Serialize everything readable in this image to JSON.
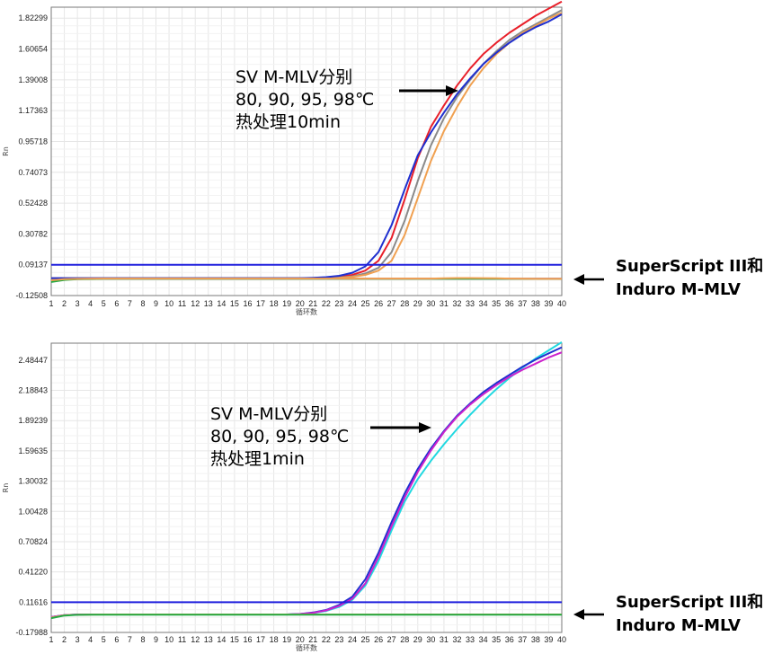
{
  "chart_data": [
    {
      "type": "line",
      "xlabel": "循环数",
      "ylabel": "Rn",
      "x": [
        1,
        2,
        3,
        4,
        5,
        6,
        7,
        8,
        9,
        10,
        11,
        12,
        13,
        14,
        15,
        16,
        17,
        18,
        19,
        20,
        21,
        22,
        23,
        24,
        25,
        26,
        27,
        28,
        29,
        30,
        31,
        32,
        33,
        34,
        35,
        36,
        37,
        38,
        39,
        40
      ],
      "xlim": [
        1,
        40
      ],
      "ylim": [
        -0.12508,
        1.9
      ],
      "yticks": [
        "-0.12508",
        "0.09137",
        "0.30782",
        "0.52428",
        "0.74073",
        "0.95718",
        "1.17363",
        "1.39008",
        "1.60654",
        "1.82299"
      ],
      "grid": true,
      "threshold": 0.09137,
      "threshold_color": "#2020dd",
      "annotation": [
        "SV M-MLV分别",
        "80, 90, 95, 98℃",
        "热处理10min"
      ],
      "side_label": [
        "SuperScript III和",
        "Induro M-MLV"
      ],
      "series": [
        {
          "color": "#e8202a",
          "values": [
            -0.003,
            -0.003,
            -0.003,
            -0.003,
            -0.003,
            -0.003,
            -0.003,
            -0.003,
            -0.003,
            -0.003,
            -0.003,
            -0.003,
            -0.003,
            -0.003,
            -0.003,
            -0.003,
            -0.003,
            -0.003,
            -0.003,
            -0.003,
            -0.002,
            0.001,
            0.007,
            0.02,
            0.05,
            0.12,
            0.28,
            0.55,
            0.84,
            1.06,
            1.21,
            1.35,
            1.47,
            1.57,
            1.65,
            1.72,
            1.78,
            1.84,
            1.89,
            1.94
          ]
        },
        {
          "color": "#8a8a8a",
          "values": [
            -0.003,
            -0.003,
            -0.003,
            -0.003,
            -0.003,
            -0.003,
            -0.003,
            -0.003,
            -0.003,
            -0.003,
            -0.003,
            -0.003,
            -0.003,
            -0.003,
            -0.003,
            -0.003,
            -0.003,
            -0.003,
            -0.003,
            -0.003,
            -0.003,
            -0.002,
            0.002,
            0.01,
            0.03,
            0.07,
            0.18,
            0.4,
            0.68,
            0.93,
            1.12,
            1.27,
            1.39,
            1.5,
            1.59,
            1.67,
            1.73,
            1.78,
            1.83,
            1.88
          ]
        },
        {
          "color": "#f0a050",
          "values": [
            -0.003,
            -0.003,
            -0.003,
            -0.003,
            -0.003,
            -0.003,
            -0.003,
            -0.003,
            -0.003,
            -0.003,
            -0.003,
            -0.003,
            -0.003,
            -0.003,
            -0.003,
            -0.003,
            -0.003,
            -0.003,
            -0.003,
            -0.003,
            -0.003,
            -0.003,
            0.0,
            0.006,
            0.02,
            0.05,
            0.12,
            0.3,
            0.56,
            0.82,
            1.03,
            1.2,
            1.35,
            1.47,
            1.57,
            1.65,
            1.72,
            1.77,
            1.82,
            1.86
          ]
        },
        {
          "color": "#1f2fcf",
          "values": [
            -0.003,
            -0.003,
            -0.003,
            -0.003,
            -0.003,
            -0.003,
            -0.003,
            -0.003,
            -0.003,
            -0.003,
            -0.003,
            -0.003,
            -0.003,
            -0.003,
            -0.003,
            -0.003,
            -0.003,
            -0.003,
            -0.003,
            -0.003,
            0.0,
            0.004,
            0.014,
            0.035,
            0.08,
            0.18,
            0.37,
            0.62,
            0.86,
            1.02,
            1.16,
            1.29,
            1.4,
            1.5,
            1.58,
            1.65,
            1.71,
            1.76,
            1.8,
            1.85
          ]
        },
        {
          "color": "#cc22cc",
          "values": [
            -0.02,
            -0.012,
            -0.009,
            -0.008,
            -0.007,
            -0.007,
            -0.007,
            -0.007,
            -0.007,
            -0.007,
            -0.007,
            -0.007,
            -0.007,
            -0.007,
            -0.007,
            -0.007,
            -0.007,
            -0.007,
            -0.007,
            -0.007,
            -0.007,
            -0.007,
            -0.007,
            -0.007,
            -0.007,
            -0.007,
            -0.007,
            -0.007,
            -0.007,
            -0.007,
            -0.007,
            -0.007,
            -0.007,
            -0.007,
            -0.007,
            -0.007,
            -0.007,
            -0.007,
            -0.007,
            -0.007
          ]
        },
        {
          "color": "#22aa44",
          "values": [
            -0.03,
            -0.015,
            -0.01,
            -0.009,
            -0.008,
            -0.008,
            -0.008,
            -0.008,
            -0.008,
            -0.008,
            -0.008,
            -0.008,
            -0.008,
            -0.008,
            -0.008,
            -0.008,
            -0.008,
            -0.008,
            -0.008,
            -0.008,
            -0.008,
            -0.008,
            -0.008,
            -0.008,
            -0.008,
            -0.008,
            -0.008,
            -0.008,
            -0.008,
            -0.008,
            -0.008,
            -0.008,
            -0.008,
            -0.008,
            -0.008,
            -0.008,
            -0.008,
            -0.008,
            -0.008,
            -0.008
          ]
        },
        {
          "color": "#f0a050",
          "values": [
            -0.018,
            -0.01,
            -0.008,
            -0.007,
            -0.006,
            -0.006,
            -0.006,
            -0.006,
            -0.006,
            -0.006,
            -0.006,
            -0.006,
            -0.006,
            -0.006,
            -0.006,
            -0.006,
            -0.006,
            -0.006,
            -0.006,
            -0.006,
            -0.006,
            -0.006,
            -0.006,
            -0.006,
            -0.006,
            -0.006,
            -0.006,
            -0.006,
            -0.006,
            -0.006,
            -0.004,
            -0.002,
            -0.002,
            -0.003,
            -0.004,
            -0.006,
            -0.007,
            -0.008,
            -0.008,
            -0.008
          ]
        }
      ]
    },
    {
      "type": "line",
      "xlabel": "循环数",
      "ylabel": "Rn",
      "x": [
        1,
        2,
        3,
        4,
        5,
        6,
        7,
        8,
        9,
        10,
        11,
        12,
        13,
        14,
        15,
        16,
        17,
        18,
        19,
        20,
        21,
        22,
        23,
        24,
        25,
        26,
        27,
        28,
        29,
        30,
        31,
        32,
        33,
        34,
        35,
        36,
        37,
        38,
        39,
        40
      ],
      "xlim": [
        1,
        40
      ],
      "ylim": [
        -0.17988,
        2.65
      ],
      "yticks": [
        "-0.17988",
        "0.11616",
        "0.41220",
        "0.70824",
        "1.00428",
        "1.30032",
        "1.59635",
        "1.89239",
        "2.18843",
        "2.48447"
      ],
      "grid": true,
      "threshold": 0.11616,
      "threshold_color": "#2020dd",
      "annotation": [
        "SV M-MLV分别",
        "80, 90, 95, 98℃",
        "热处理1min"
      ],
      "side_label": [
        "SuperScript III和",
        "Induro M-MLV"
      ],
      "series": [
        {
          "color": "#20d8e0",
          "values": [
            -0.03,
            -0.01,
            -0.005,
            -0.004,
            -0.004,
            -0.004,
            -0.004,
            -0.004,
            -0.004,
            -0.004,
            -0.004,
            -0.004,
            -0.004,
            -0.004,
            -0.004,
            -0.004,
            -0.004,
            -0.004,
            -0.004,
            0.0,
            0.01,
            0.03,
            0.07,
            0.14,
            0.28,
            0.52,
            0.82,
            1.1,
            1.32,
            1.5,
            1.66,
            1.81,
            1.95,
            2.08,
            2.2,
            2.31,
            2.41,
            2.5,
            2.58,
            2.66
          ]
        },
        {
          "color": "#1f2fcf",
          "values": [
            -0.03,
            -0.01,
            -0.005,
            -0.004,
            -0.004,
            -0.004,
            -0.004,
            -0.004,
            -0.004,
            -0.004,
            -0.004,
            -0.004,
            -0.004,
            -0.004,
            -0.004,
            -0.004,
            -0.004,
            -0.004,
            -0.004,
            0.0,
            0.015,
            0.04,
            0.09,
            0.17,
            0.34,
            0.6,
            0.9,
            1.18,
            1.42,
            1.62,
            1.79,
            1.94,
            2.06,
            2.17,
            2.26,
            2.34,
            2.42,
            2.49,
            2.55,
            2.61
          ]
        },
        {
          "color": "#cc22cc",
          "values": [
            -0.03,
            -0.01,
            -0.005,
            -0.004,
            -0.004,
            -0.004,
            -0.004,
            -0.004,
            -0.004,
            -0.004,
            -0.004,
            -0.004,
            -0.004,
            -0.004,
            -0.004,
            -0.004,
            -0.004,
            -0.004,
            -0.004,
            0.0,
            0.012,
            0.035,
            0.08,
            0.15,
            0.3,
            0.56,
            0.86,
            1.14,
            1.39,
            1.6,
            1.78,
            1.93,
            2.05,
            2.15,
            2.24,
            2.32,
            2.39,
            2.45,
            2.51,
            2.56
          ]
        },
        {
          "color": "#f0a050",
          "values": [
            -0.035,
            -0.012,
            -0.006,
            -0.005,
            -0.004,
            -0.004,
            -0.004,
            -0.004,
            -0.004,
            -0.004,
            -0.004,
            -0.004,
            -0.004,
            -0.004,
            -0.004,
            -0.004,
            -0.004,
            -0.004,
            -0.004,
            -0.004,
            -0.004,
            -0.004,
            -0.004,
            -0.004,
            -0.004,
            -0.004,
            -0.004,
            -0.004,
            -0.004,
            -0.004,
            -0.004,
            -0.004,
            -0.004,
            -0.004,
            -0.004,
            -0.004,
            -0.004,
            -0.004,
            -0.004,
            -0.004
          ]
        },
        {
          "color": "#22aa44",
          "values": [
            -0.04,
            -0.015,
            -0.008,
            -0.006,
            -0.006,
            -0.006,
            -0.006,
            -0.006,
            -0.006,
            -0.006,
            -0.006,
            -0.006,
            -0.006,
            -0.006,
            -0.006,
            -0.006,
            -0.006,
            -0.006,
            -0.006,
            -0.006,
            -0.006,
            -0.006,
            -0.006,
            -0.006,
            -0.006,
            -0.006,
            -0.006,
            -0.006,
            -0.006,
            -0.006,
            -0.006,
            -0.006,
            -0.006,
            -0.006,
            -0.006,
            -0.006,
            -0.006,
            -0.006,
            -0.006,
            -0.006
          ]
        }
      ]
    }
  ]
}
